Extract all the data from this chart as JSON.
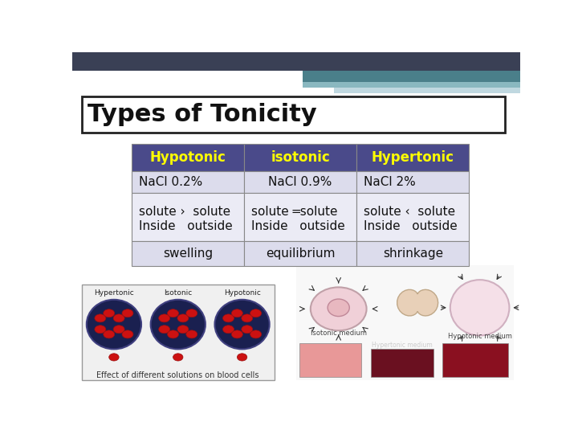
{
  "title": "Types of Tonicity",
  "background_color": "#ffffff",
  "header_bg": "#4a4a8a",
  "header_text_color": "#ffff00",
  "row_alt_color": "#dcdcec",
  "row_white_color": "#ebebf5",
  "border_color": "#888888",
  "columns": [
    "Hypotonic",
    "isotonic",
    "Hypertonic"
  ],
  "row1": [
    "NaCl 0.2%",
    "NaCl 0.9%",
    "NaCl 2%"
  ],
  "row2_line1": [
    "solute ›  solute",
    "solute ═solute",
    "solute ‹  solute"
  ],
  "row2_line2": [
    "Inside   outside",
    "Inside   outside",
    "Inside   outside"
  ],
  "row3": [
    "swelling",
    "equilibrium",
    "shrinkage"
  ],
  "title_fontsize": 22,
  "header_fontsize": 12,
  "cell_fontsize": 11,
  "title_box_color": "#ffffff",
  "title_box_border": "#222222",
  "slide_header_color": "#3a4055",
  "slide_stripe1_color": "#4a7f8a",
  "slide_stripe2_color": "#8ab8c0",
  "slide_stripe3_color": "#c0d8e0"
}
